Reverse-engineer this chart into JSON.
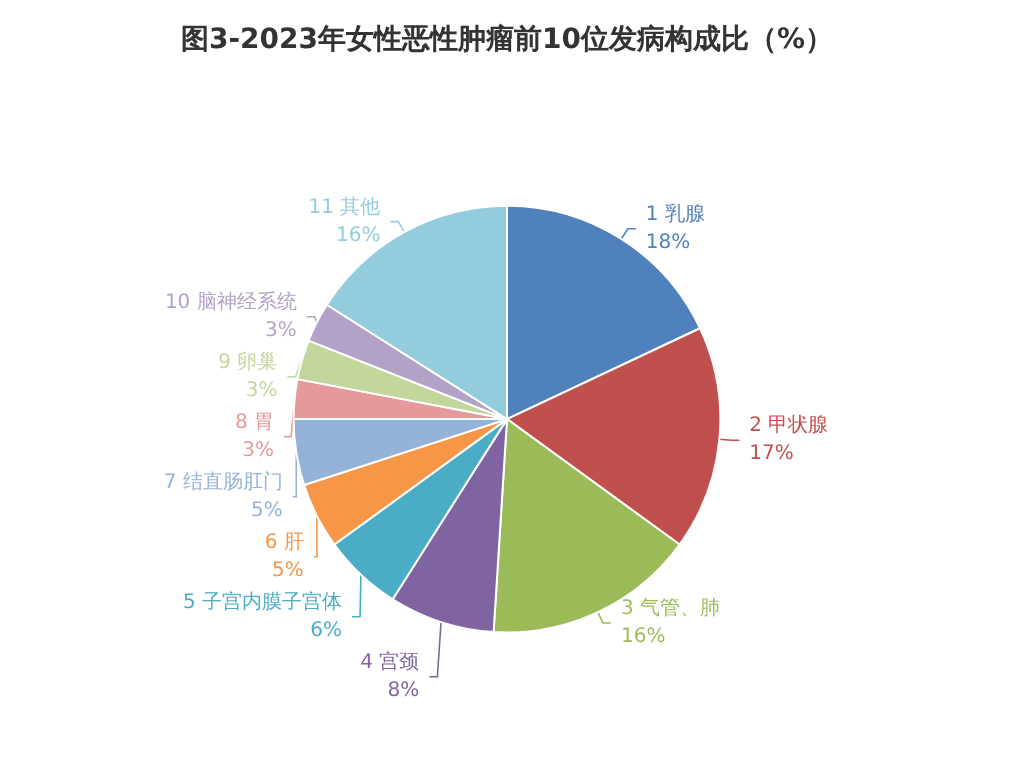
{
  "chart_data": {
    "type": "pie",
    "title": "图3-2023年女性恶性肿瘤前10位发病构成比（%）",
    "categories": [
      "1 乳腺",
      "2 甲状腺",
      "3 气管、肺",
      "4 宫颈",
      "5 子宫内膜子宫体",
      "6 肝",
      "7 结直肠肛门",
      "8 胃",
      "9 卵巢",
      "10 脑神经系统",
      "11 其他"
    ],
    "values": [
      18,
      17,
      16,
      8,
      6,
      5,
      5,
      3,
      3,
      3,
      16
    ],
    "value_labels": [
      "18%",
      "17%",
      "16%",
      "8%",
      "6%",
      "5%",
      "5%",
      "3%",
      "3%",
      "3%",
      "16%"
    ],
    "colors": [
      "#4f81bd",
      "#c0504d",
      "#9bbb59",
      "#8064a2",
      "#4bacc6",
      "#f79646",
      "#95b3d7",
      "#e6999a",
      "#c3d69b",
      "#b3a2c7",
      "#93cddd"
    ],
    "legend": false
  }
}
